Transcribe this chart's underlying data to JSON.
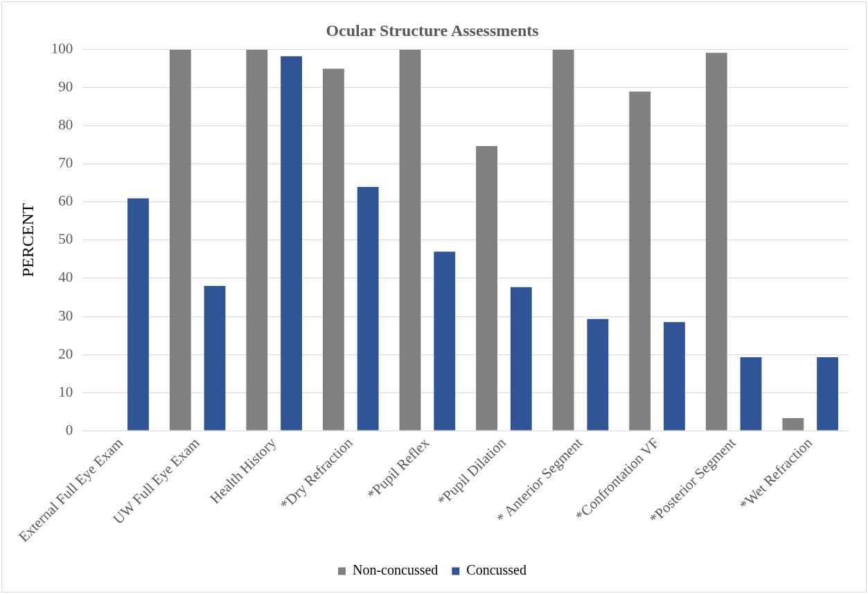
{
  "chart_data": {
    "type": "bar",
    "title": "Ocular Structure Assessments",
    "ylabel": "PERCENT",
    "categories": [
      "External Full Eye Exam",
      "UW Full Eye Exam",
      "Health History",
      "*Dry Refraction",
      "*Pupil Reflex",
      "*Pupil Dilation",
      "* Anterior Segment",
      "*Confrontation VF",
      "*Posterior Segment",
      "*Wet Refraction"
    ],
    "series": [
      {
        "name": "Non-concussed",
        "color": "#808080",
        "values": [
          0,
          100,
          100,
          95,
          100,
          74.7,
          100,
          89,
          99.2,
          3.3
        ]
      },
      {
        "name": "Concussed",
        "color": "#2f5597",
        "values": [
          61,
          38,
          98.3,
          64,
          47,
          37.7,
          29.3,
          28.5,
          19.3,
          19.3
        ]
      }
    ],
    "ylim": [
      0,
      100
    ],
    "yticks": [
      0,
      10,
      20,
      30,
      40,
      50,
      60,
      70,
      80,
      90,
      100
    ],
    "grid": "y",
    "legend": "bottom"
  }
}
